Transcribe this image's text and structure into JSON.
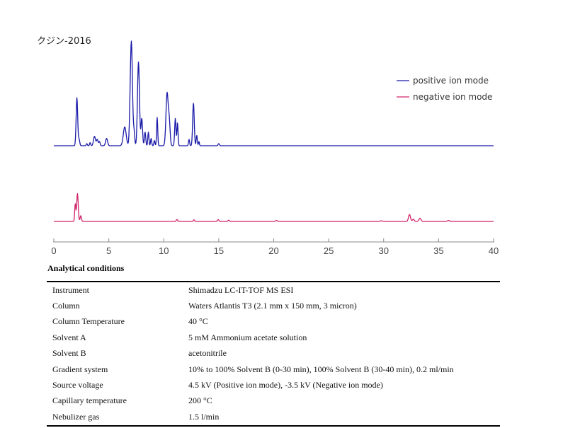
{
  "chart_data": {
    "type": "line",
    "title": "クジン-2016",
    "xlabel": "",
    "ylabel": "",
    "xlim": [
      0,
      40
    ],
    "xticks": [
      0,
      5,
      10,
      15,
      20,
      25,
      30,
      35,
      40
    ],
    "xtick_labels": [
      "0",
      "5",
      "10",
      "15",
      "20",
      "25",
      "30",
      "35",
      "40"
    ],
    "grid": false,
    "legend_position": "top-right",
    "series": [
      {
        "name": "positive ion mode",
        "color": "#1a1aa8",
        "baseline": 0,
        "peaks": [
          [
            2.1,
            0.46,
            0.07
          ],
          [
            2.3,
            0.06,
            0.06
          ],
          [
            3.0,
            0.02,
            0.05
          ],
          [
            3.3,
            0.03,
            0.05
          ],
          [
            3.7,
            0.09,
            0.09
          ],
          [
            3.95,
            0.06,
            0.07
          ],
          [
            4.15,
            0.04,
            0.06
          ],
          [
            4.8,
            0.07,
            0.09
          ],
          [
            6.45,
            0.18,
            0.13
          ],
          [
            6.9,
            0.04,
            0.05
          ],
          [
            7.05,
            1.0,
            0.1
          ],
          [
            7.3,
            0.12,
            0.06
          ],
          [
            7.7,
            0.8,
            0.09
          ],
          [
            8.0,
            0.26,
            0.07
          ],
          [
            8.3,
            0.13,
            0.06
          ],
          [
            8.6,
            0.13,
            0.05
          ],
          [
            8.85,
            0.07,
            0.05
          ],
          [
            9.15,
            0.05,
            0.05
          ],
          [
            9.4,
            0.27,
            0.05
          ],
          [
            10.3,
            0.5,
            0.1
          ],
          [
            10.5,
            0.22,
            0.08
          ],
          [
            11.05,
            0.26,
            0.06
          ],
          [
            11.25,
            0.22,
            0.05
          ],
          [
            12.3,
            0.06,
            0.05
          ],
          [
            12.7,
            0.41,
            0.07
          ],
          [
            13.0,
            0.1,
            0.05
          ],
          [
            13.2,
            0.04,
            0.04
          ],
          [
            15.0,
            0.02,
            0.06
          ]
        ]
      },
      {
        "name": "negative ion mode",
        "color": "#d0246a",
        "baseline": 0,
        "peaks": [
          [
            1.95,
            0.55,
            0.05
          ],
          [
            2.15,
            0.88,
            0.07
          ],
          [
            2.45,
            0.18,
            0.06
          ],
          [
            11.2,
            0.06,
            0.06
          ],
          [
            12.75,
            0.05,
            0.06
          ],
          [
            14.95,
            0.06,
            0.06
          ],
          [
            15.9,
            0.04,
            0.06
          ],
          [
            20.25,
            0.03,
            0.08
          ],
          [
            29.8,
            0.02,
            0.1
          ],
          [
            32.35,
            0.22,
            0.09
          ],
          [
            32.7,
            0.07,
            0.08
          ],
          [
            33.3,
            0.1,
            0.09
          ],
          [
            35.9,
            0.03,
            0.1
          ]
        ]
      }
    ]
  },
  "conditions": {
    "heading": "Analytical conditions",
    "rows": [
      {
        "label": "Instrument",
        "value": "Shimadzu LC-IT-TOF MS ESI"
      },
      {
        "label": "Column",
        "value": "Waters Atlantis T3 (2.1 mm x 150 mm, 3 micron)"
      },
      {
        "label": "Column Temperature",
        "value": "40 °C"
      },
      {
        "label": "Solvent A",
        "value": "5 mM Ammonium acetate solution"
      },
      {
        "label": "Solvent B",
        "value": "acetonitrile"
      },
      {
        "label": "Gradient system",
        "value": "10% to 100% Solvent B (0-30 min), 100% Solvent B (30-40 min), 0.2 ml/min"
      },
      {
        "label": "Source voltage",
        "value": "4.5 kV (Positive ion mode), -3.5 kV (Negative ion mode)"
      },
      {
        "label": "Capillary temperature",
        "value": "200 °C"
      },
      {
        "label": "Nebulizer gas",
        "value": "1.5 l/min"
      }
    ]
  }
}
